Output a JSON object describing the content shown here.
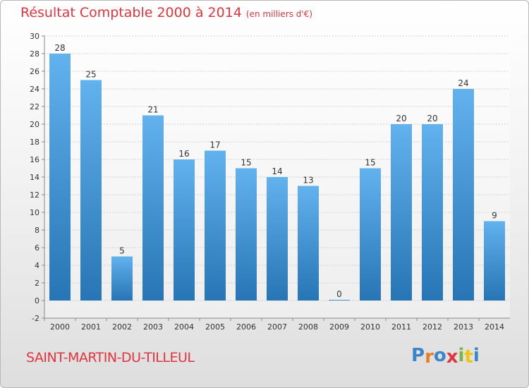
{
  "header": {
    "title": "Résultat Comptable 2000 à 2014",
    "subtitle": "(en milliers d'€)"
  },
  "footer": {
    "town": "SAINT-MARTIN-DU-TILLEUL",
    "brand_letters": [
      {
        "char": "P",
        "color": "#3a86c8"
      },
      {
        "char": "r",
        "color": "#e67e22"
      },
      {
        "char": "o",
        "color": "#3a86c8"
      },
      {
        "char": "x",
        "color": "#e0353d"
      },
      {
        "char": "i",
        "color": "#7cb342"
      },
      {
        "char": "t",
        "color": "#f1c40f"
      },
      {
        "char": "i",
        "color": "#3a86c8"
      }
    ]
  },
  "colors": {
    "bar_top": "#62b2ee",
    "bar_bottom": "#2775b4",
    "title": "#e0353d"
  },
  "chart_data": {
    "type": "bar",
    "title": "Résultat Comptable 2000 à 2014",
    "subtitle": "(en milliers d'€)",
    "categories": [
      "2000",
      "2001",
      "2002",
      "2003",
      "2004",
      "2005",
      "2006",
      "2007",
      "2008",
      "2009",
      "2010",
      "2011",
      "2012",
      "2013",
      "2014"
    ],
    "values": [
      28,
      25,
      5,
      21,
      16,
      17,
      15,
      14,
      13,
      0,
      15,
      20,
      20,
      24,
      9
    ],
    "data_labels": [
      "28",
      "25",
      "5",
      "21",
      "16",
      "17",
      "15",
      "14",
      "13",
      "0",
      "15",
      "20",
      "20",
      "24",
      "9"
    ],
    "yticks": [
      -2,
      0,
      2,
      4,
      6,
      8,
      10,
      12,
      14,
      16,
      18,
      20,
      22,
      24,
      26,
      28,
      30
    ],
    "ylim": [
      -2,
      30
    ],
    "grid": true,
    "xlabel": "",
    "ylabel": ""
  }
}
